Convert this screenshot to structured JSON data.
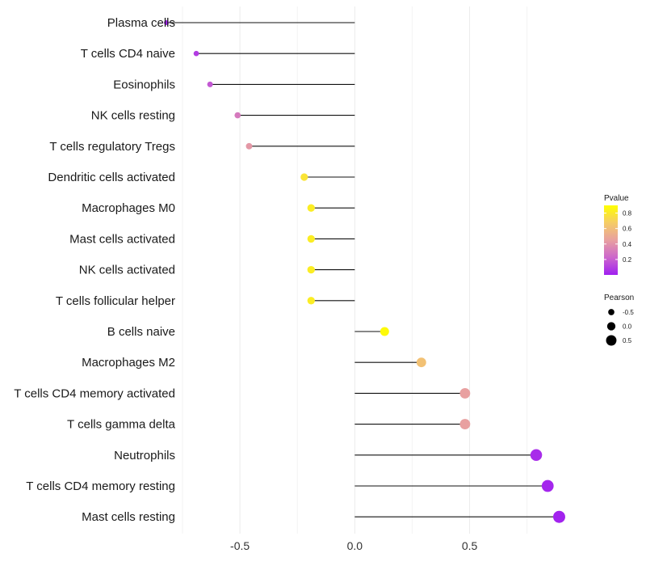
{
  "chart_data": {
    "type": "lollipop",
    "title": "",
    "xlabel": "",
    "ylabel": "",
    "xlim": [
      -0.75,
      1.05
    ],
    "xticks": [
      -0.5,
      0.0,
      0.5
    ],
    "xtick_labels": [
      "-0.5",
      "0.0",
      "0.5"
    ],
    "baseline": 0.0,
    "grid": true,
    "categories": [
      "Plasma cells",
      "T cells CD4 naive",
      "Eosinophils",
      "NK cells resting",
      "T cells regulatory  Tregs",
      "Dendritic cells activated",
      "Macrophages M0",
      "Mast cells activated",
      "NK cells activated",
      "T cells follicular helper",
      "B cells naive",
      "Macrophages M2",
      "T cells CD4 memory activated",
      "T cells gamma delta",
      "Neutrophils",
      "T cells CD4 memory resting",
      "Mast cells resting"
    ],
    "pearson": [
      -0.82,
      -0.69,
      -0.63,
      -0.51,
      -0.46,
      -0.22,
      -0.19,
      -0.19,
      -0.19,
      -0.19,
      0.13,
      0.29,
      0.48,
      0.48,
      0.79,
      0.84,
      0.89
    ],
    "pvalue": [
      0.01,
      0.09,
      0.18,
      0.3,
      0.42,
      0.78,
      0.82,
      0.82,
      0.82,
      0.82,
      0.88,
      0.62,
      0.45,
      0.45,
      0.04,
      0.02,
      0.01
    ],
    "color_legend": {
      "title": "Pvalue",
      "ticks": [
        0.8,
        0.6,
        0.4,
        0.2
      ],
      "tick_labels": [
        "0.8",
        "0.6",
        "0.4",
        "0.2"
      ],
      "range": [
        0.0,
        0.9
      ],
      "colors": [
        "#A020F0",
        "#CC66CC",
        "#E8A0A0",
        "#F5CC66",
        "#FFFF00"
      ]
    },
    "size_legend": {
      "title": "Pearson",
      "values": [
        -0.5,
        0.0,
        0.5
      ],
      "labels": [
        "-0.5",
        "0.0",
        "0.5"
      ],
      "color": "#000000"
    },
    "legend_position": "right"
  }
}
